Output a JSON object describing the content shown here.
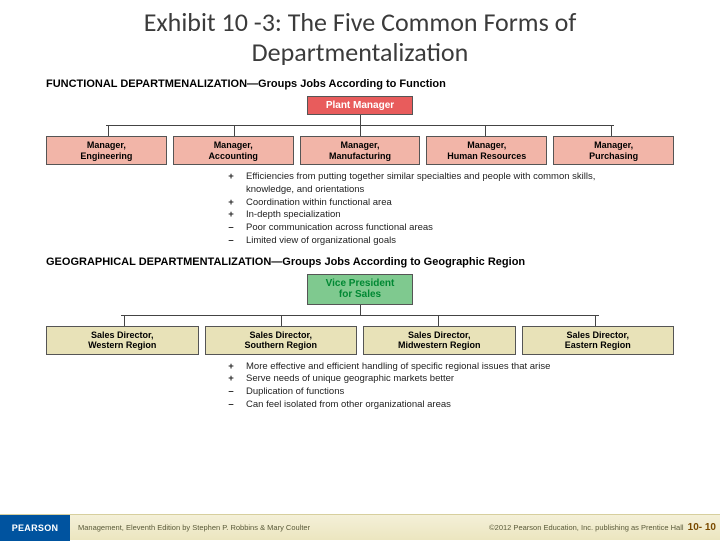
{
  "title": "Exhibit 10 -3: The Five Common Forms of Departmentalization",
  "section1": {
    "header_caps": "FUNCTIONAL DEPARTMENALIZATION",
    "header_sub": "—Groups Jobs According to Function",
    "top_box": "Plant Manager",
    "top_bg": "#e85c5c",
    "child_bg": "#f2b5a8",
    "children": [
      "Manager,\nEngineering",
      "Manager,\nAccounting",
      "Manager,\nManufacturing",
      "Manager,\nHuman Resources",
      "Manager,\nPurchasing"
    ],
    "bullets": [
      {
        "sign": "+",
        "text": "Efficiencies from putting together similar specialties and people with common skills, knowledge, and orientations"
      },
      {
        "sign": "+",
        "text": "Coordination within functional area"
      },
      {
        "sign": "+",
        "text": "In-depth specialization"
      },
      {
        "sign": "–",
        "text": "Poor communication across functional areas"
      },
      {
        "sign": "–",
        "text": "Limited view of organizational goals"
      }
    ]
  },
  "section2": {
    "header_caps": "GEOGRAPHICAL DEPARTMENTALIZATION",
    "header_sub": "—Groups Jobs According to Geographic Region",
    "top_box": "Vice President\nfor Sales",
    "top_bg": "#7fc98f",
    "child_bg": "#e8e2b8",
    "children": [
      "Sales Director,\nWestern Region",
      "Sales Director,\nSouthern Region",
      "Sales Director,\nMidwestern Region",
      "Sales Director,\nEastern Region"
    ],
    "bullets": [
      {
        "sign": "+",
        "text": "More effective and efficient handling of specific regional issues that arise"
      },
      {
        "sign": "+",
        "text": "Serve needs of unique geographic markets better"
      },
      {
        "sign": "–",
        "text": "Duplication of functions"
      },
      {
        "sign": "–",
        "text": "Can feel isolated from other organizational areas"
      }
    ]
  },
  "footer": {
    "logo": "PEARSON",
    "left": "Management, Eleventh Edition by Stephen P. Robbins & Mary Coulter",
    "right": "©2012 Pearson Education, Inc. publishing as Prentice Hall",
    "page": "10- 10"
  },
  "colors": {
    "text": "#3b3b3b",
    "line": "#444444"
  }
}
